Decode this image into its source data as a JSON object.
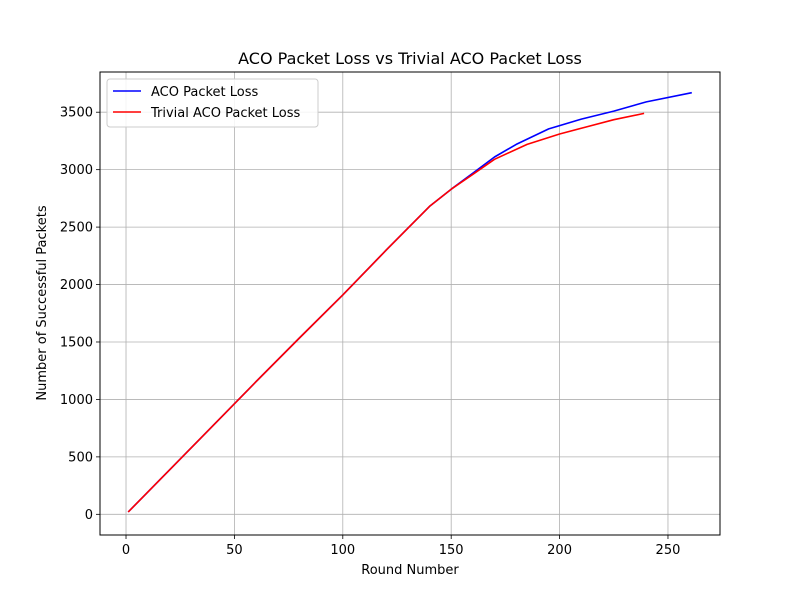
{
  "chart_data": {
    "type": "line",
    "title": "ACO Packet Loss vs Trivial ACO Packet Loss",
    "xlabel": "Round Number",
    "ylabel": "Number of Successful Packets",
    "xlim": [
      -12,
      274
    ],
    "ylim": [
      -180,
      3850
    ],
    "xticks": [
      0,
      50,
      100,
      150,
      200,
      250
    ],
    "yticks": [
      0,
      500,
      1000,
      1500,
      2000,
      2500,
      3000,
      3500
    ],
    "grid": true,
    "legend_position": "top-left",
    "series": [
      {
        "name": "ACO Packet Loss",
        "color": "#0000ff",
        "x": [
          1,
          20,
          40,
          60,
          80,
          100,
          120,
          140,
          150,
          160,
          170,
          180,
          195,
          210,
          225,
          240,
          261
        ],
        "y": [
          20,
          385,
          770,
          1155,
          1535,
          1910,
          2300,
          2680,
          2830,
          2970,
          3110,
          3220,
          3355,
          3440,
          3510,
          3590,
          3670
        ]
      },
      {
        "name": "Trivial ACO Packet Loss",
        "color": "#ff0000",
        "x": [
          1,
          20,
          40,
          60,
          80,
          100,
          120,
          140,
          150,
          160,
          170,
          185,
          200,
          212,
          225,
          239
        ],
        "y": [
          20,
          385,
          770,
          1155,
          1535,
          1910,
          2300,
          2680,
          2830,
          2960,
          3090,
          3220,
          3310,
          3370,
          3435,
          3490
        ]
      }
    ]
  }
}
